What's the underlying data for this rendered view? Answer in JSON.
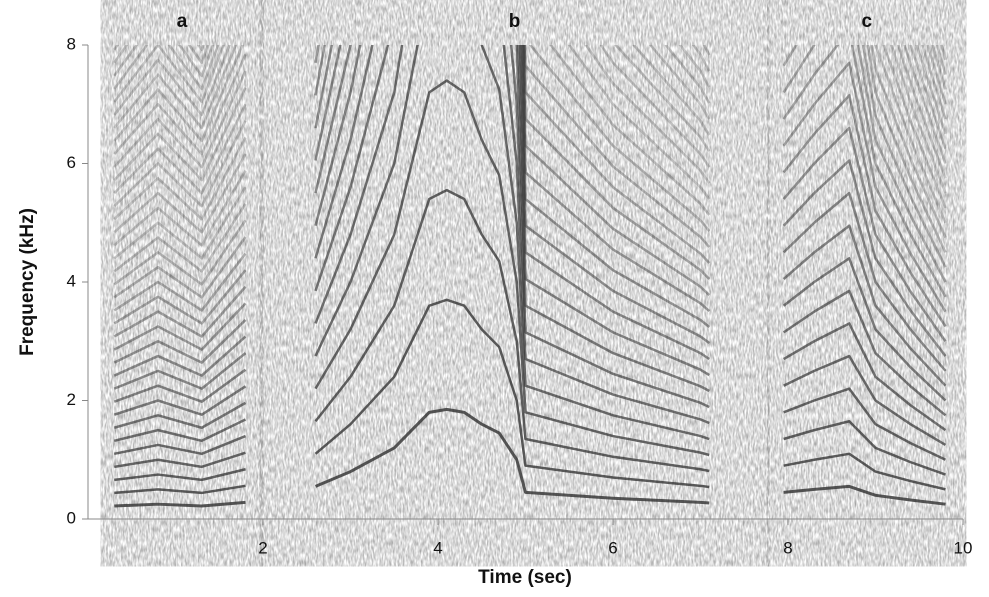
{
  "chart_data": {
    "type": "spectrogram",
    "xlabel": "Time (sec)",
    "ylabel": "Frequency (kHz)",
    "xlim": [
      0,
      10
    ],
    "ylim": [
      0,
      8
    ],
    "xticks": [
      2,
      4,
      6,
      8,
      10
    ],
    "yticks": [
      0,
      2,
      4,
      6,
      8
    ],
    "regions": [
      {
        "label": "a",
        "x": [
          0.3,
          1.85
        ]
      },
      {
        "label": "b",
        "x": [
          2.45,
          7.3
        ]
      },
      {
        "label": "c",
        "x": [
          7.95,
          9.85
        ]
      }
    ],
    "series": [
      {
        "color": "#333333",
        "x": [
          0.3,
          0.8,
          1.3,
          1.8
        ],
        "values": [
          0.22,
          0.25,
          0.22,
          0.28
        ]
      },
      {
        "color": "#333333",
        "x": [
          2.6,
          3.0,
          3.5,
          3.9,
          4.1,
          4.3,
          4.5,
          4.7,
          4.9,
          5.0,
          6.0,
          7.0,
          7.1
        ],
        "values": [
          0.55,
          0.8,
          1.2,
          1.8,
          1.85,
          1.8,
          1.6,
          1.45,
          1.0,
          0.45,
          0.35,
          0.28,
          0.27
        ]
      },
      {
        "color": "#333333",
        "x": [
          7.95,
          8.3,
          8.7,
          9.0,
          9.4,
          9.8
        ],
        "values": [
          0.45,
          0.5,
          0.55,
          0.4,
          0.32,
          0.25
        ]
      }
    ]
  }
}
